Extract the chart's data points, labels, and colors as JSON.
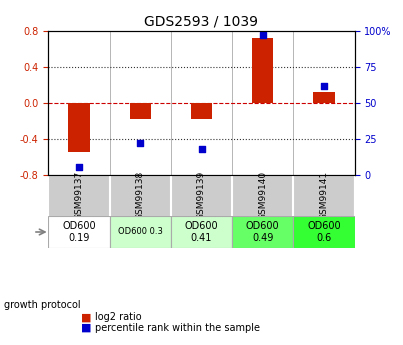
{
  "title": "GDS2593 / 1039",
  "samples": [
    "GSM99137",
    "GSM99138",
    "GSM99139",
    "GSM99140",
    "GSM99141"
  ],
  "log2_ratio": [
    -0.55,
    -0.18,
    -0.18,
    0.72,
    0.12
  ],
  "percentile_rank": [
    5,
    22,
    18,
    97,
    62
  ],
  "ylim_left": [
    -0.8,
    0.8
  ],
  "ylim_right": [
    0,
    100
  ],
  "yticks_left": [
    -0.8,
    -0.4,
    0.0,
    0.4,
    0.8
  ],
  "yticks_right": [
    0,
    25,
    50,
    75,
    100
  ],
  "bar_color": "#cc2200",
  "dot_color": "#0000cc",
  "zero_line_color": "#cc0000",
  "dotted_line_color": "#333333",
  "bg_color": "#ffffff",
  "plot_bg": "#ffffff",
  "growth_protocol_labels": [
    "OD600\n0.19",
    "OD600 0.3",
    "OD600\n0.41",
    "OD600\n0.49",
    "OD600\n0.6"
  ],
  "growth_protocol_colors": [
    "#ffffff",
    "#ccffcc",
    "#ccffcc",
    "#66ff66",
    "#33ff33"
  ],
  "sample_label_bg": "#cccccc",
  "legend_red_label": "log2 ratio",
  "legend_blue_label": "percentile rank within the sample",
  "growth_protocol_text": "growth protocol"
}
